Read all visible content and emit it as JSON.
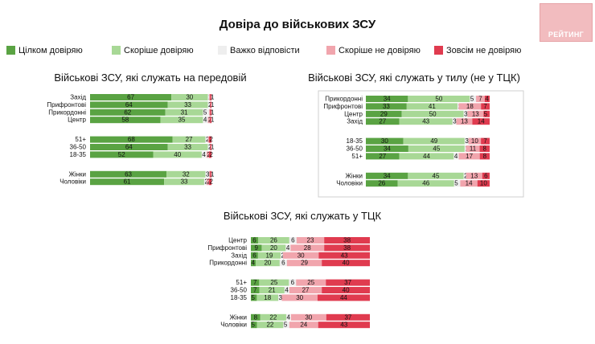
{
  "title": "Довіра до військових ЗСУ",
  "logo_text": "РЕЙТИНГ",
  "legend": [
    {
      "label": "Цілком довіряю",
      "color": "#5aa343"
    },
    {
      "label": "Скоріше довіряю",
      "color": "#a8d896"
    },
    {
      "label": "Важко відповісти",
      "color": "#eeeeee"
    },
    {
      "label": "Скоріше не довіряю",
      "color": "#f1a5ad"
    },
    {
      "label": "Зовсім не довіряю",
      "color": "#e03b4f"
    }
  ],
  "chart_data": [
    {
      "type": "bar",
      "stacked": true,
      "orientation": "horizontal",
      "title": "Військові ЗСУ, які служать на передовій",
      "groups": [
        {
          "rows": [
            {
              "label": "Захід",
              "values": [
                67,
                30,
                1,
                1,
                1
              ]
            },
            {
              "label": "Прифронтові",
              "values": [
                64,
                33,
                2,
                0,
                1
              ]
            },
            {
              "label": "Прикордонні",
              "values": [
                62,
                31,
                5,
                1,
                1
              ]
            },
            {
              "label": "Центр",
              "values": [
                58,
                35,
                4,
                2,
                1
              ]
            }
          ]
        },
        {
          "rows": [
            {
              "label": "51+",
              "values": [
                68,
                27,
                2,
                1,
                2
              ]
            },
            {
              "label": "36-50",
              "values": [
                64,
                33,
                2,
                0,
                1
              ]
            },
            {
              "label": "18-35",
              "values": [
                52,
                40,
                4,
                2,
                2
              ]
            }
          ]
        },
        {
          "rows": [
            {
              "label": "Жінки",
              "values": [
                63,
                32,
                3,
                1,
                1
              ]
            },
            {
              "label": "Чоловіки",
              "values": [
                61,
                33,
                2,
                2,
                2
              ]
            }
          ]
        }
      ]
    },
    {
      "type": "bar",
      "stacked": true,
      "orientation": "horizontal",
      "title": "Військові ЗСУ, які служать у тилу (не у ТЦК)",
      "groups": [
        {
          "rows": [
            {
              "label": "Прикордонні",
              "values": [
                34,
                50,
                5,
                7,
                4
              ]
            },
            {
              "label": "Прифронтові",
              "values": [
                33,
                41,
                1,
                18,
                7
              ]
            },
            {
              "label": "Центр",
              "values": [
                29,
                50,
                3,
                13,
                5
              ]
            },
            {
              "label": "Захід",
              "values": [
                27,
                43,
                3,
                13,
                14
              ]
            }
          ]
        },
        {
          "rows": [
            {
              "label": "18-35",
              "values": [
                30,
                49,
                3,
                10,
                7
              ]
            },
            {
              "label": "36-50",
              "values": [
                34,
                45,
                1,
                11,
                8
              ]
            },
            {
              "label": "51+",
              "values": [
                27,
                44,
                4,
                17,
                8
              ]
            }
          ]
        },
        {
          "rows": [
            {
              "label": "Жінки",
              "values": [
                34,
                45,
                2,
                13,
                6
              ]
            },
            {
              "label": "Чоловіки",
              "values": [
                26,
                46,
                5,
                14,
                10
              ]
            }
          ]
        }
      ]
    },
    {
      "type": "bar",
      "stacked": true,
      "orientation": "horizontal",
      "title": "Військові ЗСУ, які служать у ТЦК",
      "groups": [
        {
          "rows": [
            {
              "label": "Центр",
              "values": [
                6,
                26,
                6,
                23,
                38
              ]
            },
            {
              "label": "Прифронтові",
              "values": [
                9,
                20,
                4,
                28,
                38
              ]
            },
            {
              "label": "Захід",
              "values": [
                6,
                19,
                2,
                30,
                43
              ]
            },
            {
              "label": "Прикордонні",
              "values": [
                4,
                20,
                6,
                29,
                40
              ]
            }
          ]
        },
        {
          "rows": [
            {
              "label": "51+",
              "values": [
                7,
                25,
                6,
                25,
                37
              ]
            },
            {
              "label": "36-50",
              "values": [
                7,
                21,
                4,
                27,
                40
              ]
            },
            {
              "label": "18-35",
              "values": [
                5,
                18,
                3,
                30,
                44
              ]
            }
          ]
        },
        {
          "rows": [
            {
              "label": "Жінки",
              "values": [
                8,
                22,
                4,
                30,
                37
              ]
            },
            {
              "label": "Чоловіки",
              "values": [
                5,
                22,
                5,
                24,
                43
              ]
            }
          ]
        }
      ]
    }
  ]
}
